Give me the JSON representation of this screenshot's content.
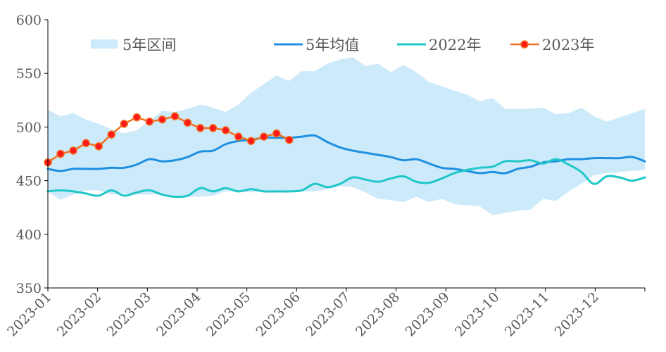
{
  "chart_data": {
    "type": "line",
    "title": "",
    "xlabel": "",
    "ylabel": "",
    "ylim": [
      350,
      600
    ],
    "yticks": [
      350,
      400,
      450,
      500,
      550,
      600
    ],
    "x_tick_labels": [
      "2023-01",
      "2023-02",
      "2023-03",
      "2023-04",
      "2023-05",
      "2023-06",
      "2023-07",
      "2023-08",
      "2023-09",
      "2023-10",
      "2023-11",
      "2023-12"
    ],
    "grid": false,
    "legend": {
      "placement": "top",
      "entries": [
        {
          "label": "5年区间",
          "kind": "band"
        },
        {
          "label": "5年均值",
          "kind": "line"
        },
        {
          "label": "2022年",
          "kind": "line"
        },
        {
          "label": "2023年",
          "kind": "line-marker"
        }
      ]
    },
    "colors": {
      "band": "#cdeafb",
      "mean": "#1f8fe0",
      "y2022": "#1fc7c7",
      "y2023_line": "#f07020",
      "y2023_marker": "#ff1a1a",
      "axis": "#000000",
      "text": "#595959"
    },
    "band": {
      "name": "5年区间",
      "x": [
        0.0,
        0.25,
        0.5,
        0.75,
        1.0,
        1.25,
        1.5,
        1.75,
        2.0,
        2.25,
        2.5,
        2.75,
        3.0,
        3.25,
        3.5,
        3.75,
        4.0,
        4.25,
        4.5,
        4.75,
        5.0,
        5.25,
        5.5,
        5.75,
        6.0,
        6.25,
        6.5,
        6.75,
        7.0,
        7.25,
        7.5,
        7.75,
        8.0,
        8.25,
        8.5,
        8.75,
        9.0,
        9.25,
        9.5,
        9.75,
        10.0,
        10.25,
        10.5,
        10.75,
        11.0,
        11.25,
        11.5,
        11.75
      ],
      "upper": [
        516,
        510,
        513,
        507,
        503,
        498,
        494,
        497,
        506,
        515,
        514,
        517,
        521,
        518,
        514,
        521,
        532,
        540,
        548,
        543,
        552,
        552,
        559,
        563,
        565,
        557,
        559,
        551,
        558,
        551,
        542,
        538,
        534,
        530,
        524,
        527,
        517,
        517,
        517,
        518,
        512,
        513,
        518,
        510,
        505,
        509,
        513,
        517
      ],
      "lower": [
        440,
        432,
        437,
        441,
        441,
        437,
        438,
        437,
        437,
        437,
        436,
        435,
        435,
        436,
        440,
        440,
        439,
        440,
        441,
        440,
        440,
        440,
        442,
        445,
        444,
        439,
        433,
        432,
        430,
        435,
        430,
        433,
        428,
        427,
        426,
        418,
        420,
        422,
        423,
        433,
        431,
        440,
        447,
        455,
        457,
        458,
        459,
        460
      ]
    },
    "series": [
      {
        "name": "5年均值",
        "x": [
          0.0,
          0.25,
          0.5,
          0.75,
          1.0,
          1.25,
          1.5,
          1.75,
          2.0,
          2.25,
          2.5,
          2.75,
          3.0,
          3.25,
          3.5,
          3.75,
          4.0,
          4.25,
          4.5,
          4.75,
          5.0,
          5.25,
          5.5,
          5.75,
          6.0,
          6.25,
          6.5,
          6.75,
          7.0,
          7.25,
          7.5,
          7.75,
          8.0,
          8.25,
          8.5,
          8.75,
          9.0,
          9.25,
          9.5,
          9.75,
          10.0,
          10.25,
          10.5,
          10.75,
          11.0,
          11.25,
          11.5,
          11.75
        ],
        "values": [
          461,
          459,
          461,
          461,
          461,
          462,
          462,
          465,
          470,
          468,
          469,
          472,
          477,
          478,
          484,
          487,
          488,
          490,
          490,
          490,
          491,
          492,
          486,
          481,
          478,
          476,
          474,
          472,
          469,
          470,
          466,
          462,
          461,
          459,
          457,
          458,
          457,
          461,
          463,
          467,
          468,
          470,
          470,
          471,
          471,
          471,
          472,
          468
        ]
      },
      {
        "name": "2022年",
        "x": [
          0.0,
          0.25,
          0.5,
          0.75,
          1.0,
          1.25,
          1.5,
          1.75,
          2.0,
          2.25,
          2.5,
          2.75,
          3.0,
          3.25,
          3.5,
          3.75,
          4.0,
          4.25,
          4.5,
          4.75,
          5.0,
          5.25,
          5.5,
          5.75,
          6.0,
          6.25,
          6.5,
          6.75,
          7.0,
          7.25,
          7.5,
          7.75,
          8.0,
          8.25,
          8.5,
          8.75,
          9.0,
          9.25,
          9.5,
          9.75,
          10.0,
          10.25,
          10.5,
          10.75,
          11.0,
          11.25,
          11.5,
          11.75
        ],
        "values": [
          440,
          441,
          440,
          438,
          436,
          441,
          436,
          439,
          441,
          437,
          435,
          436,
          443,
          440,
          443,
          440,
          442,
          440,
          440,
          440,
          441,
          447,
          444,
          447,
          453,
          451,
          449,
          452,
          454,
          449,
          448,
          452,
          457,
          460,
          462,
          463,
          468,
          468,
          469,
          466,
          470,
          465,
          458,
          447,
          454,
          453,
          450,
          453
        ]
      },
      {
        "name": "2023年",
        "marker": true,
        "x": [
          0.0,
          0.25,
          0.5,
          0.75,
          1.0,
          1.25,
          1.5,
          1.75,
          2.0,
          2.25,
          2.5,
          2.75,
          3.0,
          3.25,
          3.5,
          3.75,
          4.0,
          4.25,
          4.5,
          4.75
        ],
        "values": [
          467,
          475,
          478,
          485,
          482,
          493,
          503,
          509,
          505,
          507,
          510,
          504,
          499,
          499,
          497,
          491,
          487,
          491,
          494,
          488
        ]
      }
    ]
  }
}
